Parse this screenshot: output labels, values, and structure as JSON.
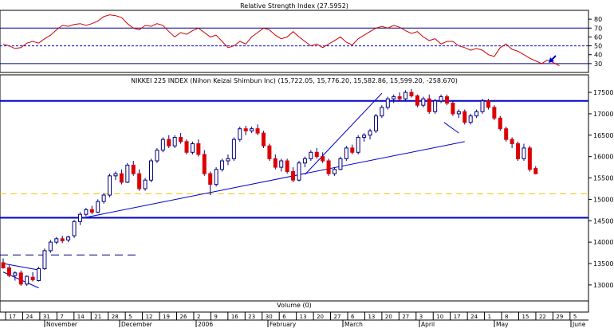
{
  "chart_data": [
    {
      "type": "line",
      "title": "Relative Strength Index (27.5952)",
      "current_value": 27.5952,
      "ylim": [
        20,
        90
      ],
      "yticks": [
        30,
        40,
        50,
        60,
        70,
        80
      ],
      "reference_lines": [
        30,
        50,
        70
      ],
      "colors": {
        "line": "#cc0000",
        "ref": "#000080",
        "mid": "#0000cc"
      },
      "x": [
        0,
        2,
        4,
        6,
        8,
        10,
        12,
        14,
        16,
        18,
        20,
        22,
        24,
        26,
        28,
        30,
        32,
        34,
        36,
        38,
        40,
        42,
        44,
        46,
        48,
        50,
        52,
        54,
        56,
        58,
        60,
        62,
        64,
        66,
        68,
        70,
        72,
        74,
        76,
        78,
        80,
        82,
        84,
        86,
        88,
        90,
        92,
        94,
        96,
        98,
        100,
        102,
        104,
        106,
        108,
        110,
        112,
        114,
        116,
        118,
        120,
        122,
        124,
        126,
        128,
        130,
        132,
        134,
        136,
        138,
        140,
        142,
        144,
        146,
        148,
        150,
        152,
        154,
        156,
        158,
        160,
        162,
        164,
        166,
        168,
        170,
        172,
        174,
        176,
        178,
        180,
        182,
        184,
        186,
        188
      ],
      "values": [
        52,
        50,
        47,
        48,
        53,
        55,
        53,
        58,
        62,
        68,
        73,
        72,
        74,
        75,
        73,
        75,
        78,
        83,
        85,
        84,
        82,
        75,
        70,
        68,
        73,
        72,
        75,
        73,
        66,
        60,
        65,
        63,
        67,
        70,
        65,
        60,
        62,
        55,
        48,
        50,
        55,
        52,
        60,
        65,
        70,
        68,
        62,
        58,
        60,
        66,
        60,
        55,
        50,
        52,
        48,
        52,
        56,
        60,
        54,
        51,
        58,
        62,
        66,
        70,
        72,
        70,
        73,
        71,
        67,
        64,
        66,
        60,
        56,
        58,
        52,
        55,
        55,
        50,
        48,
        45,
        47,
        45,
        40,
        38,
        48,
        52,
        46,
        44,
        40,
        36,
        33,
        30,
        34,
        31,
        27.6
      ]
    },
    {
      "type": "candlestick",
      "title": "NIKKEI 225 INDEX (Nihon Keizai Shimbun Inc) (15,722.05, 15,776.20, 15,582.86, 15,599.20, -258.670)",
      "ohlc_latest": {
        "open": 15722.05,
        "high": 15776.2,
        "low": 15582.86,
        "close": 15599.2,
        "change": -258.67
      },
      "ylim": [
        12700,
        17650
      ],
      "yticks": [
        13000,
        13500,
        14000,
        14500,
        15000,
        15500,
        16000,
        16500,
        17000,
        17500
      ],
      "colors": {
        "up": "#ffffff",
        "down": "#dd0000",
        "edge": "#000080",
        "support": "#0000cc",
        "dashed_navy": "#000080",
        "dashed_yellow": "#f0c800"
      },
      "horizontal_lines": [
        {
          "value": 17300,
          "style": "solid"
        },
        {
          "value": 14570,
          "style": "solid"
        },
        {
          "value": 15130,
          "style": "dashed-yellow"
        },
        {
          "value": 13700,
          "style": "dashed-navy",
          "to_day": 45
        }
      ],
      "trendlines": [
        {
          "from": [
            0,
            13500
          ],
          "to": [
            12,
            13350
          ]
        },
        {
          "from": [
            0,
            13300
          ],
          "to": [
            12,
            12930
          ]
        },
        {
          "from": [
            28,
            14580
          ],
          "to": [
            156,
            16350
          ]
        },
        {
          "from": [
            102,
            15580
          ],
          "to": [
            128,
            17480
          ]
        }
      ],
      "arrow": {
        "from": [
          149,
          16800
        ],
        "to": [
          154,
          16550
        ],
        "color": "#0000cc"
      },
      "series": [
        {
          "d": 0,
          "o": 13520,
          "h": 13620,
          "l": 13380,
          "c": 13400
        },
        {
          "d": 2,
          "o": 13400,
          "h": 13460,
          "l": 13180,
          "c": 13220
        },
        {
          "d": 4,
          "o": 13220,
          "h": 13320,
          "l": 13100,
          "c": 13280
        },
        {
          "d": 6,
          "o": 13280,
          "h": 13340,
          "l": 12980,
          "c": 13020
        },
        {
          "d": 8,
          "o": 13020,
          "h": 13220,
          "l": 12980,
          "c": 13200
        },
        {
          "d": 10,
          "o": 13180,
          "h": 13300,
          "l": 13080,
          "c": 13120
        },
        {
          "d": 12,
          "o": 13100,
          "h": 13420,
          "l": 13080,
          "c": 13380
        },
        {
          "d": 14,
          "o": 13380,
          "h": 13850,
          "l": 13350,
          "c": 13800
        },
        {
          "d": 16,
          "o": 13800,
          "h": 14050,
          "l": 13750,
          "c": 14000
        },
        {
          "d": 18,
          "o": 14000,
          "h": 14120,
          "l": 13950,
          "c": 14080
        },
        {
          "d": 20,
          "o": 14080,
          "h": 14150,
          "l": 13980,
          "c": 14030
        },
        {
          "d": 22,
          "o": 14050,
          "h": 14150,
          "l": 14000,
          "c": 14120
        },
        {
          "d": 24,
          "o": 14150,
          "h": 14520,
          "l": 14100,
          "c": 14480
        },
        {
          "d": 26,
          "o": 14480,
          "h": 14700,
          "l": 14400,
          "c": 14650
        },
        {
          "d": 28,
          "o": 14650,
          "h": 14800,
          "l": 14600,
          "c": 14760
        },
        {
          "d": 30,
          "o": 14760,
          "h": 14850,
          "l": 14650,
          "c": 14700
        },
        {
          "d": 32,
          "o": 14700,
          "h": 15000,
          "l": 14680,
          "c": 14950
        },
        {
          "d": 34,
          "o": 14950,
          "h": 15150,
          "l": 14900,
          "c": 15100
        },
        {
          "d": 36,
          "o": 15100,
          "h": 15600,
          "l": 15050,
          "c": 15550
        },
        {
          "d": 38,
          "o": 15550,
          "h": 15650,
          "l": 15450,
          "c": 15600
        },
        {
          "d": 40,
          "o": 15600,
          "h": 15700,
          "l": 15350,
          "c": 15400
        },
        {
          "d": 42,
          "o": 15400,
          "h": 15850,
          "l": 15380,
          "c": 15800
        },
        {
          "d": 44,
          "o": 15800,
          "h": 15900,
          "l": 15550,
          "c": 15600
        },
        {
          "d": 46,
          "o": 15600,
          "h": 15700,
          "l": 15200,
          "c": 15250
        },
        {
          "d": 48,
          "o": 15250,
          "h": 15500,
          "l": 15200,
          "c": 15450
        },
        {
          "d": 50,
          "o": 15450,
          "h": 15950,
          "l": 15400,
          "c": 15900
        },
        {
          "d": 52,
          "o": 15900,
          "h": 16200,
          "l": 15850,
          "c": 16150
        },
        {
          "d": 54,
          "o": 16150,
          "h": 16450,
          "l": 16100,
          "c": 16400
        },
        {
          "d": 56,
          "o": 16400,
          "h": 16500,
          "l": 16200,
          "c": 16250
        },
        {
          "d": 58,
          "o": 16250,
          "h": 16500,
          "l": 16200,
          "c": 16450
        },
        {
          "d": 60,
          "o": 16450,
          "h": 16550,
          "l": 16300,
          "c": 16350
        },
        {
          "d": 62,
          "o": 16350,
          "h": 16400,
          "l": 16050,
          "c": 16100
        },
        {
          "d": 64,
          "o": 16100,
          "h": 16350,
          "l": 16050,
          "c": 16300
        },
        {
          "d": 66,
          "o": 16300,
          "h": 16400,
          "l": 16000,
          "c": 16050
        },
        {
          "d": 68,
          "o": 16050,
          "h": 16150,
          "l": 15550,
          "c": 15600
        },
        {
          "d": 70,
          "o": 15600,
          "h": 15650,
          "l": 15100,
          "c": 15350
        },
        {
          "d": 72,
          "o": 15350,
          "h": 15750,
          "l": 15300,
          "c": 15700
        },
        {
          "d": 74,
          "o": 15700,
          "h": 15950,
          "l": 15650,
          "c": 15900
        },
        {
          "d": 76,
          "o": 15900,
          "h": 16050,
          "l": 15800,
          "c": 15950
        },
        {
          "d": 78,
          "o": 15950,
          "h": 16450,
          "l": 15900,
          "c": 16400
        },
        {
          "d": 80,
          "o": 16400,
          "h": 16700,
          "l": 16350,
          "c": 16650
        },
        {
          "d": 82,
          "o": 16650,
          "h": 16720,
          "l": 16500,
          "c": 16600
        },
        {
          "d": 84,
          "o": 16600,
          "h": 16700,
          "l": 16550,
          "c": 16650
        },
        {
          "d": 86,
          "o": 16650,
          "h": 16750,
          "l": 16500,
          "c": 16550
        },
        {
          "d": 88,
          "o": 16550,
          "h": 16600,
          "l": 16200,
          "c": 16250
        },
        {
          "d": 90,
          "o": 16250,
          "h": 16300,
          "l": 15900,
          "c": 15950
        },
        {
          "d": 92,
          "o": 15950,
          "h": 16050,
          "l": 15700,
          "c": 15750
        },
        {
          "d": 94,
          "o": 15750,
          "h": 15950,
          "l": 15650,
          "c": 15900
        },
        {
          "d": 96,
          "o": 15900,
          "h": 15950,
          "l": 15600,
          "c": 15650
        },
        {
          "d": 98,
          "o": 15650,
          "h": 15750,
          "l": 15400,
          "c": 15450
        },
        {
          "d": 100,
          "o": 15450,
          "h": 15900,
          "l": 15420,
          "c": 15850
        },
        {
          "d": 102,
          "o": 15850,
          "h": 16000,
          "l": 15750,
          "c": 15950
        },
        {
          "d": 104,
          "o": 15950,
          "h": 16150,
          "l": 15900,
          "c": 16100
        },
        {
          "d": 106,
          "o": 16100,
          "h": 16200,
          "l": 15950,
          "c": 16000
        },
        {
          "d": 108,
          "o": 16000,
          "h": 16100,
          "l": 15850,
          "c": 15900
        },
        {
          "d": 110,
          "o": 15900,
          "h": 15950,
          "l": 15550,
          "c": 15600
        },
        {
          "d": 112,
          "o": 15600,
          "h": 15750,
          "l": 15550,
          "c": 15700
        },
        {
          "d": 114,
          "o": 15700,
          "h": 16000,
          "l": 15680,
          "c": 15950
        },
        {
          "d": 116,
          "o": 15950,
          "h": 16250,
          "l": 15900,
          "c": 16200
        },
        {
          "d": 118,
          "o": 16200,
          "h": 16280,
          "l": 16050,
          "c": 16100
        },
        {
          "d": 120,
          "o": 16100,
          "h": 16500,
          "l": 16050,
          "c": 16450
        },
        {
          "d": 122,
          "o": 16450,
          "h": 16550,
          "l": 16350,
          "c": 16500
        },
        {
          "d": 124,
          "o": 16500,
          "h": 16650,
          "l": 16400,
          "c": 16600
        },
        {
          "d": 126,
          "o": 16600,
          "h": 17000,
          "l": 16550,
          "c": 16950
        },
        {
          "d": 128,
          "o": 16950,
          "h": 17200,
          "l": 16900,
          "c": 17150
        },
        {
          "d": 130,
          "o": 17150,
          "h": 17400,
          "l": 17100,
          "c": 17350
        },
        {
          "d": 132,
          "o": 17350,
          "h": 17450,
          "l": 17250,
          "c": 17400
        },
        {
          "d": 134,
          "o": 17400,
          "h": 17500,
          "l": 17300,
          "c": 17350
        },
        {
          "d": 136,
          "o": 17350,
          "h": 17550,
          "l": 17300,
          "c": 17500
        },
        {
          "d": 138,
          "o": 17500,
          "h": 17580,
          "l": 17380,
          "c": 17420
        },
        {
          "d": 140,
          "o": 17420,
          "h": 17450,
          "l": 17150,
          "c": 17200
        },
        {
          "d": 142,
          "o": 17200,
          "h": 17400,
          "l": 17150,
          "c": 17350
        },
        {
          "d": 144,
          "o": 17350,
          "h": 17450,
          "l": 17000,
          "c": 17050
        },
        {
          "d": 146,
          "o": 17050,
          "h": 17350,
          "l": 17000,
          "c": 17300
        },
        {
          "d": 148,
          "o": 17300,
          "h": 17450,
          "l": 17250,
          "c": 17400
        },
        {
          "d": 150,
          "o": 17400,
          "h": 17450,
          "l": 17200,
          "c": 17250
        },
        {
          "d": 152,
          "o": 17250,
          "h": 17300,
          "l": 16950,
          "c": 17000
        },
        {
          "d": 154,
          "o": 17000,
          "h": 17100,
          "l": 16900,
          "c": 17050
        },
        {
          "d": 156,
          "o": 17050,
          "h": 17100,
          "l": 16750,
          "c": 16800
        },
        {
          "d": 158,
          "o": 16800,
          "h": 17000,
          "l": 16750,
          "c": 16950
        },
        {
          "d": 160,
          "o": 16950,
          "h": 17100,
          "l": 16900,
          "c": 17050
        },
        {
          "d": 162,
          "o": 17050,
          "h": 17350,
          "l": 17000,
          "c": 17300
        },
        {
          "d": 164,
          "o": 17300,
          "h": 17350,
          "l": 17100,
          "c": 17150
        },
        {
          "d": 166,
          "o": 17150,
          "h": 17200,
          "l": 16850,
          "c": 16900
        },
        {
          "d": 168,
          "o": 16900,
          "h": 16950,
          "l": 16600,
          "c": 16650
        },
        {
          "d": 170,
          "o": 16650,
          "h": 16700,
          "l": 16350,
          "c": 16400
        },
        {
          "d": 172,
          "o": 16400,
          "h": 16450,
          "l": 16200,
          "c": 16300
        },
        {
          "d": 174,
          "o": 16300,
          "h": 16350,
          "l": 15900,
          "c": 15950
        },
        {
          "d": 176,
          "o": 15950,
          "h": 16300,
          "l": 15900,
          "c": 16200
        },
        {
          "d": 178,
          "o": 16200,
          "h": 16250,
          "l": 15650,
          "c": 15700
        },
        {
          "d": 180,
          "o": 15722.05,
          "h": 15776.2,
          "l": 15582.86,
          "c": 15599.2
        }
      ]
    }
  ],
  "volume_label": "Volume (0)",
  "x_axis": {
    "day_ticks": [
      "17",
      "24",
      "31",
      "7",
      "14",
      "21",
      "28",
      "5",
      "12",
      "19",
      "26",
      "2",
      "9",
      "16",
      "23",
      "30",
      "6",
      "13",
      "20",
      "27",
      "6",
      "13",
      "20",
      "27",
      "3",
      "10",
      "17",
      "24",
      "1",
      "8",
      "15",
      "22",
      "29",
      "5"
    ],
    "months": [
      "November",
      "December",
      "2006",
      "February",
      "March",
      "April",
      "May",
      "June"
    ]
  }
}
